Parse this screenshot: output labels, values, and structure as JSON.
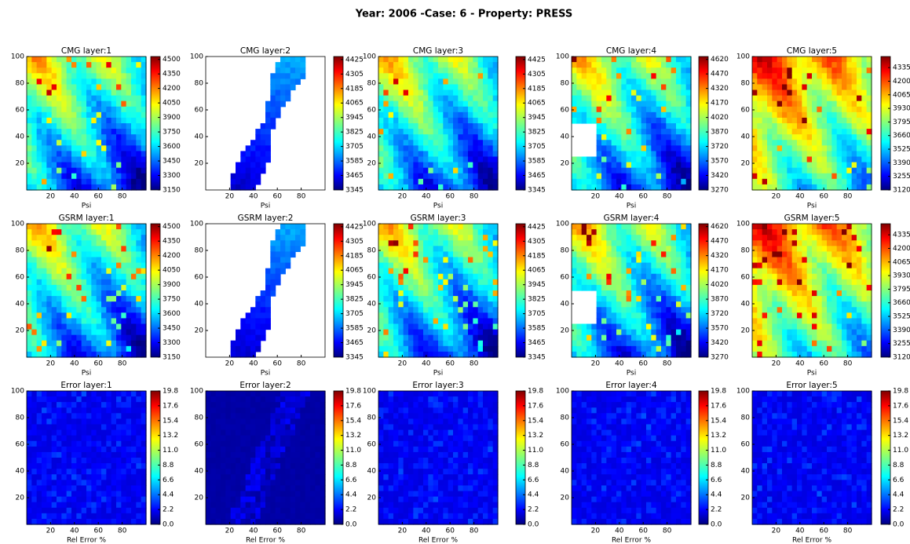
{
  "title": "Year: 2006 -Case: 6 - Property: PRESS",
  "chart_data": [
    {
      "type": "heatmap",
      "title": "CMG layer:1",
      "xlabel": "Psi",
      "xlim": [
        0,
        100
      ],
      "ylim": [
        0,
        100
      ],
      "xticks": [
        20,
        40,
        60,
        80
      ],
      "yticks": [
        20,
        40,
        60,
        80,
        100
      ],
      "clim": [
        3150,
        4530
      ],
      "cticks": [
        3150,
        3300,
        3450,
        3600,
        3750,
        3900,
        4050,
        4200,
        4350,
        4500
      ]
    },
    {
      "type": "heatmap",
      "title": "CMG layer:2",
      "xlabel": "Psi",
      "xlim": [
        0,
        100
      ],
      "ylim": [
        0,
        100
      ],
      "xticks": [
        20,
        40,
        60,
        80
      ],
      "yticks": [
        20,
        40,
        60,
        80,
        100
      ],
      "clim": [
        3345,
        4450
      ],
      "cticks": [
        3345,
        3465,
        3585,
        3705,
        3825,
        3945,
        4065,
        4185,
        4305,
        4425
      ]
    },
    {
      "type": "heatmap",
      "title": "CMG layer:3",
      "xlabel": "Psi",
      "xlim": [
        0,
        100
      ],
      "ylim": [
        0,
        100
      ],
      "xticks": [
        20,
        40,
        60,
        80
      ],
      "yticks": [
        20,
        40,
        60,
        80,
        100
      ],
      "clim": [
        3345,
        4450
      ],
      "cticks": [
        3345,
        3465,
        3585,
        3705,
        3825,
        3945,
        4065,
        4185,
        4305,
        4425
      ]
    },
    {
      "type": "heatmap",
      "title": "CMG layer:4",
      "xlabel": "Psi",
      "xlim": [
        0,
        100
      ],
      "ylim": [
        0,
        100
      ],
      "xticks": [
        20,
        40,
        60,
        80
      ],
      "yticks": [
        20,
        40,
        60,
        80,
        100
      ],
      "clim": [
        3270,
        4650
      ],
      "cticks": [
        3270,
        3420,
        3570,
        3720,
        3870,
        4020,
        4170,
        4320,
        4470,
        4620
      ]
    },
    {
      "type": "heatmap",
      "title": "CMG layer:5",
      "xlabel": "Psi",
      "xlim": [
        0,
        100
      ],
      "ylim": [
        0,
        100
      ],
      "xticks": [
        20,
        40,
        60,
        80
      ],
      "yticks": [
        20,
        40,
        60,
        80,
        100
      ],
      "clim": [
        3120,
        4445
      ],
      "cticks": [
        3120,
        3255,
        3390,
        3525,
        3660,
        3795,
        3930,
        4065,
        4200,
        4335
      ]
    },
    {
      "type": "heatmap",
      "title": "GSRM layer:1",
      "xlabel": "Psi",
      "xlim": [
        0,
        100
      ],
      "ylim": [
        0,
        100
      ],
      "xticks": [
        20,
        40,
        60,
        80
      ],
      "yticks": [
        20,
        40,
        60,
        80,
        100
      ],
      "clim": [
        3150,
        4530
      ],
      "cticks": [
        3150,
        3300,
        3450,
        3600,
        3750,
        3900,
        4050,
        4200,
        4350,
        4500
      ]
    },
    {
      "type": "heatmap",
      "title": "GSRM layer:2",
      "xlabel": "Psi",
      "xlim": [
        0,
        100
      ],
      "ylim": [
        0,
        100
      ],
      "xticks": [
        20,
        40,
        60,
        80
      ],
      "yticks": [
        20,
        40,
        60,
        80,
        100
      ],
      "clim": [
        3345,
        4450
      ],
      "cticks": [
        3345,
        3465,
        3585,
        3705,
        3825,
        3945,
        4065,
        4185,
        4305,
        4425
      ]
    },
    {
      "type": "heatmap",
      "title": "GSRM layer:3",
      "xlabel": "Psi",
      "xlim": [
        0,
        100
      ],
      "ylim": [
        0,
        100
      ],
      "xticks": [
        20,
        40,
        60,
        80
      ],
      "yticks": [
        20,
        40,
        60,
        80,
        100
      ],
      "clim": [
        3345,
        4450
      ],
      "cticks": [
        3345,
        3465,
        3585,
        3705,
        3825,
        3945,
        4065,
        4185,
        4305,
        4425
      ]
    },
    {
      "type": "heatmap",
      "title": "GSRM layer:4",
      "xlabel": "Psi",
      "xlim": [
        0,
        100
      ],
      "ylim": [
        0,
        100
      ],
      "xticks": [
        20,
        40,
        60,
        80
      ],
      "yticks": [
        20,
        40,
        60,
        80,
        100
      ],
      "clim": [
        3270,
        4650
      ],
      "cticks": [
        3270,
        3420,
        3570,
        3720,
        3870,
        4020,
        4170,
        4320,
        4470,
        4620
      ]
    },
    {
      "type": "heatmap",
      "title": "GSRM layer:5",
      "xlabel": "Psi",
      "xlim": [
        0,
        100
      ],
      "ylim": [
        0,
        100
      ],
      "xticks": [
        20,
        40,
        60,
        80
      ],
      "yticks": [
        20,
        40,
        60,
        80,
        100
      ],
      "clim": [
        3120,
        4445
      ],
      "cticks": [
        3120,
        3255,
        3390,
        3525,
        3660,
        3795,
        3930,
        4065,
        4200,
        4335
      ]
    },
    {
      "type": "heatmap",
      "title": "Error layer:1",
      "xlabel": "Rel Error %",
      "xlim": [
        0,
        100
      ],
      "ylim": [
        0,
        100
      ],
      "xticks": [
        20,
        40,
        60,
        80
      ],
      "yticks": [
        20,
        40,
        60,
        80,
        100
      ],
      "clim": [
        0,
        19.8
      ],
      "cticks": [
        {
          "value": 0,
          "label": "0.0"
        },
        2.2,
        4.4,
        6.6,
        8.8,
        {
          "value": 11,
          "label": "11.0"
        },
        13.2,
        15.4,
        17.6,
        19.8
      ]
    },
    {
      "type": "heatmap",
      "title": "Error layer:2",
      "xlabel": "Rel Error %",
      "xlim": [
        0,
        100
      ],
      "ylim": [
        0,
        100
      ],
      "xticks": [
        20,
        40,
        60,
        80
      ],
      "yticks": [
        20,
        40,
        60,
        80,
        100
      ],
      "clim": [
        0,
        19.8
      ],
      "cticks": [
        {
          "value": 0,
          "label": "0.0"
        },
        2.2,
        4.4,
        6.6,
        8.8,
        {
          "value": 11,
          "label": "11.0"
        },
        13.2,
        15.4,
        17.6,
        19.8
      ]
    },
    {
      "type": "heatmap",
      "title": "Error layer:3",
      "xlabel": "Rel Error %",
      "xlim": [
        0,
        100
      ],
      "ylim": [
        0,
        100
      ],
      "xticks": [
        20,
        40,
        60,
        80
      ],
      "yticks": [
        20,
        40,
        60,
        80,
        100
      ],
      "clim": [
        0,
        19.8
      ],
      "cticks": [
        {
          "value": 0,
          "label": "0.0"
        },
        2.2,
        4.4,
        6.6,
        8.8,
        {
          "value": 11,
          "label": "11.0"
        },
        13.2,
        15.4,
        17.6,
        19.8
      ]
    },
    {
      "type": "heatmap",
      "title": "Error layer:4",
      "xlabel": "Rel Error %",
      "xlim": [
        0,
        100
      ],
      "ylim": [
        0,
        100
      ],
      "xticks": [
        20,
        40,
        60,
        80
      ],
      "yticks": [
        20,
        40,
        60,
        80,
        100
      ],
      "clim": [
        0,
        19.8
      ],
      "cticks": [
        {
          "value": 0,
          "label": "0.0"
        },
        2.2,
        4.4,
        6.6,
        8.8,
        {
          "value": 11,
          "label": "11.0"
        },
        13.2,
        15.4,
        17.6,
        19.8
      ]
    },
    {
      "type": "heatmap",
      "title": "Error layer:5",
      "xlabel": "Rel Error %",
      "xlim": [
        0,
        100
      ],
      "ylim": [
        0,
        100
      ],
      "xticks": [
        20,
        40,
        60,
        80
      ],
      "yticks": [
        20,
        40,
        60,
        80,
        100
      ],
      "clim": [
        0,
        19.8
      ],
      "cticks": [
        {
          "value": 0,
          "label": "0.0"
        },
        2.2,
        4.4,
        6.6,
        8.8,
        {
          "value": 11,
          "label": "11.0"
        },
        13.2,
        15.4,
        17.6,
        19.8
      ]
    }
  ]
}
